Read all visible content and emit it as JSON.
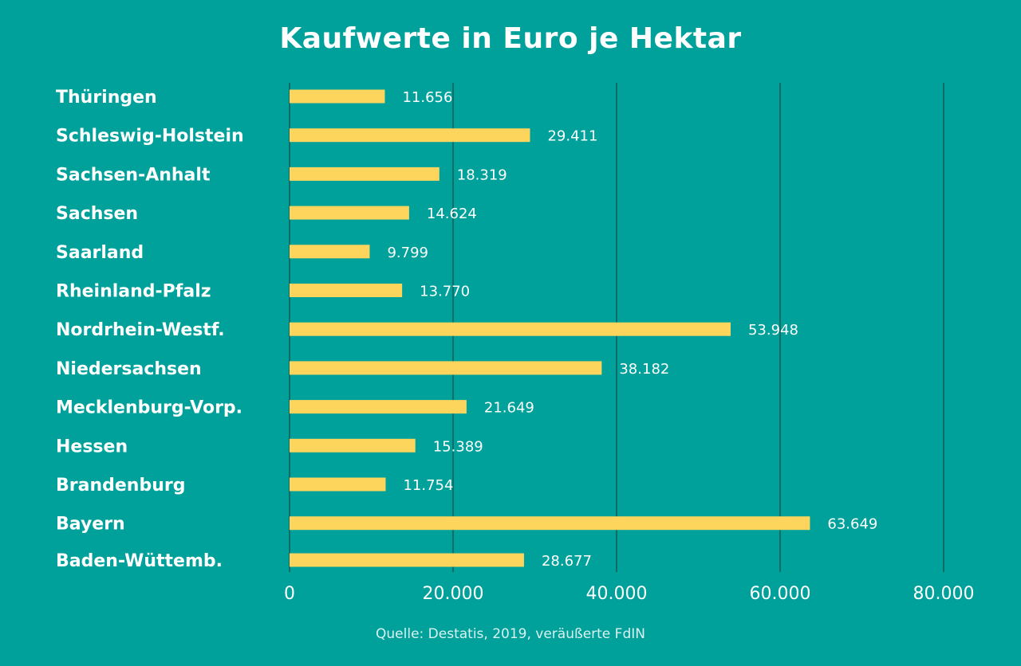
{
  "chart_data": {
    "type": "bar",
    "orientation": "horizontal",
    "title": "Kaufwerte in Euro je Hektar",
    "categories": [
      "Thüringen",
      "Schleswig-Holstein",
      "Sachsen-Anhalt",
      "Sachsen",
      "Saarland",
      "Rheinland-Pfalz",
      "Nordrhein-Westf.",
      "Niedersachsen",
      "Mecklenburg-Vorp.",
      "Hessen",
      "Brandenburg",
      "Bayern",
      "Baden-Wüttemb."
    ],
    "values": [
      11656,
      29411,
      18319,
      14624,
      9799,
      13770,
      53948,
      38182,
      21649,
      15389,
      11754,
      63649,
      28677
    ],
    "value_labels": [
      "11.656",
      "29.411",
      "18.319",
      "14.624",
      "9.799",
      "13.770",
      "53.948",
      "38.182",
      "21.649",
      "15.389",
      "11.754",
      "63.649",
      "28.677"
    ],
    "xlim": [
      0,
      80000
    ],
    "ticks": [
      0,
      20000,
      40000,
      60000,
      80000
    ],
    "tick_labels": [
      "0",
      "20.000",
      "40.000",
      "60.000",
      "80.000"
    ],
    "grid": true,
    "colors": {
      "background": "#00a19a",
      "bar": "#fdd45c",
      "grid": "#1d4a44"
    }
  },
  "source": "Quelle: Destatis, 2019, veräußerte FdIN"
}
